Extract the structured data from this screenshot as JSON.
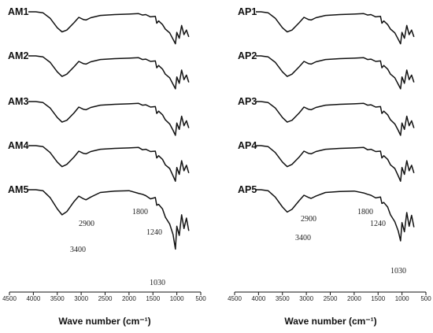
{
  "chart_data": [
    {
      "type": "line",
      "panel": "left",
      "xlabel": "Wave number (cm⁻¹)",
      "xlim": [
        4500,
        500
      ],
      "x_ticks": [
        "4500",
        "4000",
        "3500",
        "3000",
        "2500",
        "2000",
        "1500",
        "1000",
        "500"
      ],
      "series": [
        {
          "name": "AM1",
          "x": [
            3950,
            3800,
            3650,
            3500,
            3400,
            3300,
            3150,
            3050,
            2950,
            2900,
            2800,
            2600,
            2300,
            2000,
            1800,
            1720,
            1650,
            1550,
            1450,
            1420,
            1380,
            1300,
            1240,
            1150,
            1080,
            1030,
            1000,
            950,
            900,
            850,
            800,
            750
          ],
          "y": [
            0.0,
            0.02,
            0.14,
            0.35,
            0.44,
            0.4,
            0.24,
            0.12,
            0.17,
            0.18,
            0.13,
            0.08,
            0.06,
            0.05,
            0.04,
            0.07,
            0.06,
            0.11,
            0.1,
            0.25,
            0.2,
            0.28,
            0.38,
            0.46,
            0.6,
            0.7,
            0.45,
            0.58,
            0.3,
            0.5,
            0.4,
            0.55
          ]
        },
        {
          "name": "AM2",
          "x": [
            3950,
            3800,
            3650,
            3500,
            3400,
            3300,
            3150,
            3050,
            2950,
            2900,
            2800,
            2600,
            2300,
            2000,
            1800,
            1720,
            1650,
            1550,
            1450,
            1420,
            1380,
            1300,
            1240,
            1150,
            1080,
            1030,
            1000,
            950,
            900,
            850,
            800,
            750
          ],
          "y": [
            0.0,
            0.02,
            0.14,
            0.35,
            0.45,
            0.4,
            0.24,
            0.12,
            0.17,
            0.18,
            0.13,
            0.08,
            0.06,
            0.05,
            0.04,
            0.08,
            0.07,
            0.12,
            0.11,
            0.26,
            0.21,
            0.29,
            0.4,
            0.48,
            0.62,
            0.72,
            0.46,
            0.6,
            0.31,
            0.52,
            0.42,
            0.58
          ]
        },
        {
          "name": "AM3",
          "x": [
            3950,
            3800,
            3650,
            3500,
            3400,
            3300,
            3150,
            3050,
            2950,
            2900,
            2800,
            2600,
            2300,
            2000,
            1800,
            1720,
            1650,
            1550,
            1450,
            1420,
            1380,
            1300,
            1240,
            1150,
            1080,
            1030,
            1000,
            950,
            900,
            850,
            800,
            750
          ],
          "y": [
            0.0,
            0.02,
            0.14,
            0.35,
            0.45,
            0.41,
            0.25,
            0.12,
            0.17,
            0.18,
            0.13,
            0.08,
            0.06,
            0.05,
            0.04,
            0.08,
            0.07,
            0.12,
            0.11,
            0.26,
            0.21,
            0.29,
            0.4,
            0.49,
            0.63,
            0.74,
            0.47,
            0.61,
            0.32,
            0.53,
            0.42,
            0.58
          ]
        },
        {
          "name": "AM4",
          "x": [
            3950,
            3800,
            3650,
            3500,
            3400,
            3300,
            3150,
            3050,
            2950,
            2900,
            2800,
            2600,
            2300,
            2000,
            1800,
            1720,
            1650,
            1550,
            1450,
            1420,
            1380,
            1300,
            1240,
            1150,
            1080,
            1030,
            1000,
            950,
            900,
            850,
            800,
            750
          ],
          "y": [
            0.0,
            0.02,
            0.15,
            0.36,
            0.46,
            0.41,
            0.25,
            0.12,
            0.17,
            0.18,
            0.13,
            0.08,
            0.06,
            0.05,
            0.04,
            0.09,
            0.08,
            0.13,
            0.12,
            0.27,
            0.22,
            0.3,
            0.42,
            0.5,
            0.66,
            0.78,
            0.48,
            0.63,
            0.33,
            0.55,
            0.43,
            0.6
          ]
        },
        {
          "name": "AM5",
          "x": [
            3950,
            3800,
            3650,
            3500,
            3400,
            3300,
            3150,
            3050,
            2950,
            2900,
            2800,
            2600,
            2300,
            2000,
            1800,
            1720,
            1650,
            1550,
            1450,
            1420,
            1380,
            1300,
            1240,
            1150,
            1080,
            1030,
            1000,
            950,
            900,
            850,
            800,
            750
          ],
          "y": [
            0.0,
            0.02,
            0.17,
            0.42,
            0.55,
            0.48,
            0.26,
            0.14,
            0.2,
            0.22,
            0.16,
            0.06,
            0.03,
            0.02,
            0.08,
            0.1,
            0.13,
            0.2,
            0.17,
            0.34,
            0.32,
            0.42,
            0.6,
            0.75,
            0.98,
            1.3,
            0.8,
            1.0,
            0.55,
            0.85,
            0.62,
            0.9
          ]
        }
      ],
      "annotations": [
        "3400",
        "2900",
        "1800",
        "1240",
        "1030"
      ]
    },
    {
      "type": "line",
      "panel": "right",
      "xlabel": "Wave number (cm⁻¹)",
      "xlim": [
        4500,
        500
      ],
      "x_ticks": [
        "4500",
        "4000",
        "3500",
        "3000",
        "2500",
        "2000",
        "1500",
        "1000",
        "500"
      ],
      "series": [
        {
          "name": "AP1",
          "x": [
            3950,
            3800,
            3650,
            3500,
            3400,
            3300,
            3150,
            3050,
            2950,
            2900,
            2800,
            2600,
            2300,
            2000,
            1800,
            1720,
            1650,
            1550,
            1450,
            1420,
            1380,
            1300,
            1240,
            1150,
            1080,
            1030,
            1000,
            950,
            900,
            850,
            800,
            750
          ],
          "y": [
            0.0,
            0.02,
            0.14,
            0.35,
            0.44,
            0.4,
            0.24,
            0.12,
            0.17,
            0.18,
            0.13,
            0.08,
            0.06,
            0.05,
            0.04,
            0.07,
            0.06,
            0.11,
            0.1,
            0.25,
            0.2,
            0.28,
            0.38,
            0.46,
            0.6,
            0.7,
            0.45,
            0.58,
            0.3,
            0.5,
            0.4,
            0.55
          ]
        },
        {
          "name": "AP2",
          "x": [
            3950,
            3800,
            3650,
            3500,
            3400,
            3300,
            3150,
            3050,
            2950,
            2900,
            2800,
            2600,
            2300,
            2000,
            1800,
            1720,
            1650,
            1550,
            1450,
            1420,
            1380,
            1300,
            1240,
            1150,
            1080,
            1030,
            1000,
            950,
            900,
            850,
            800,
            750
          ],
          "y": [
            0.0,
            0.02,
            0.14,
            0.35,
            0.45,
            0.4,
            0.24,
            0.12,
            0.17,
            0.18,
            0.13,
            0.08,
            0.06,
            0.05,
            0.04,
            0.08,
            0.07,
            0.12,
            0.11,
            0.26,
            0.21,
            0.29,
            0.4,
            0.48,
            0.62,
            0.72,
            0.46,
            0.6,
            0.31,
            0.52,
            0.42,
            0.58
          ]
        },
        {
          "name": "AP3",
          "x": [
            3950,
            3800,
            3650,
            3500,
            3400,
            3300,
            3150,
            3050,
            2950,
            2900,
            2800,
            2600,
            2300,
            2000,
            1800,
            1720,
            1650,
            1550,
            1450,
            1420,
            1380,
            1300,
            1240,
            1150,
            1080,
            1030,
            1000,
            950,
            900,
            850,
            800,
            750
          ],
          "y": [
            0.0,
            0.02,
            0.14,
            0.35,
            0.45,
            0.41,
            0.25,
            0.12,
            0.17,
            0.18,
            0.13,
            0.08,
            0.06,
            0.05,
            0.04,
            0.08,
            0.07,
            0.12,
            0.11,
            0.26,
            0.21,
            0.29,
            0.4,
            0.49,
            0.63,
            0.74,
            0.47,
            0.61,
            0.32,
            0.53,
            0.42,
            0.58
          ]
        },
        {
          "name": "AP4",
          "x": [
            3950,
            3800,
            3650,
            3500,
            3400,
            3300,
            3150,
            3050,
            2950,
            2900,
            2800,
            2600,
            2300,
            2000,
            1800,
            1720,
            1650,
            1550,
            1450,
            1420,
            1380,
            1300,
            1240,
            1150,
            1080,
            1030,
            1000,
            950,
            900,
            850,
            800,
            750
          ],
          "y": [
            0.0,
            0.02,
            0.15,
            0.36,
            0.46,
            0.41,
            0.25,
            0.12,
            0.17,
            0.18,
            0.13,
            0.08,
            0.06,
            0.05,
            0.04,
            0.09,
            0.08,
            0.13,
            0.12,
            0.27,
            0.22,
            0.3,
            0.42,
            0.5,
            0.66,
            0.78,
            0.48,
            0.63,
            0.33,
            0.55,
            0.43,
            0.6
          ]
        },
        {
          "name": "AP5",
          "x": [
            3950,
            3800,
            3650,
            3500,
            3400,
            3300,
            3150,
            3050,
            2950,
            2900,
            2800,
            2600,
            2300,
            2000,
            1800,
            1720,
            1650,
            1550,
            1450,
            1420,
            1380,
            1300,
            1240,
            1150,
            1080,
            1030,
            1000,
            950,
            900,
            850,
            800,
            750
          ],
          "y": [
            0.0,
            0.02,
            0.16,
            0.38,
            0.49,
            0.43,
            0.24,
            0.12,
            0.17,
            0.19,
            0.14,
            0.06,
            0.04,
            0.03,
            0.07,
            0.1,
            0.12,
            0.18,
            0.16,
            0.3,
            0.28,
            0.38,
            0.55,
            0.7,
            0.9,
            1.12,
            0.72,
            0.92,
            0.5,
            0.8,
            0.56,
            0.82
          ]
        }
      ],
      "annotations": [
        "3400",
        "2900",
        "1800",
        "1240",
        "1030"
      ]
    }
  ]
}
